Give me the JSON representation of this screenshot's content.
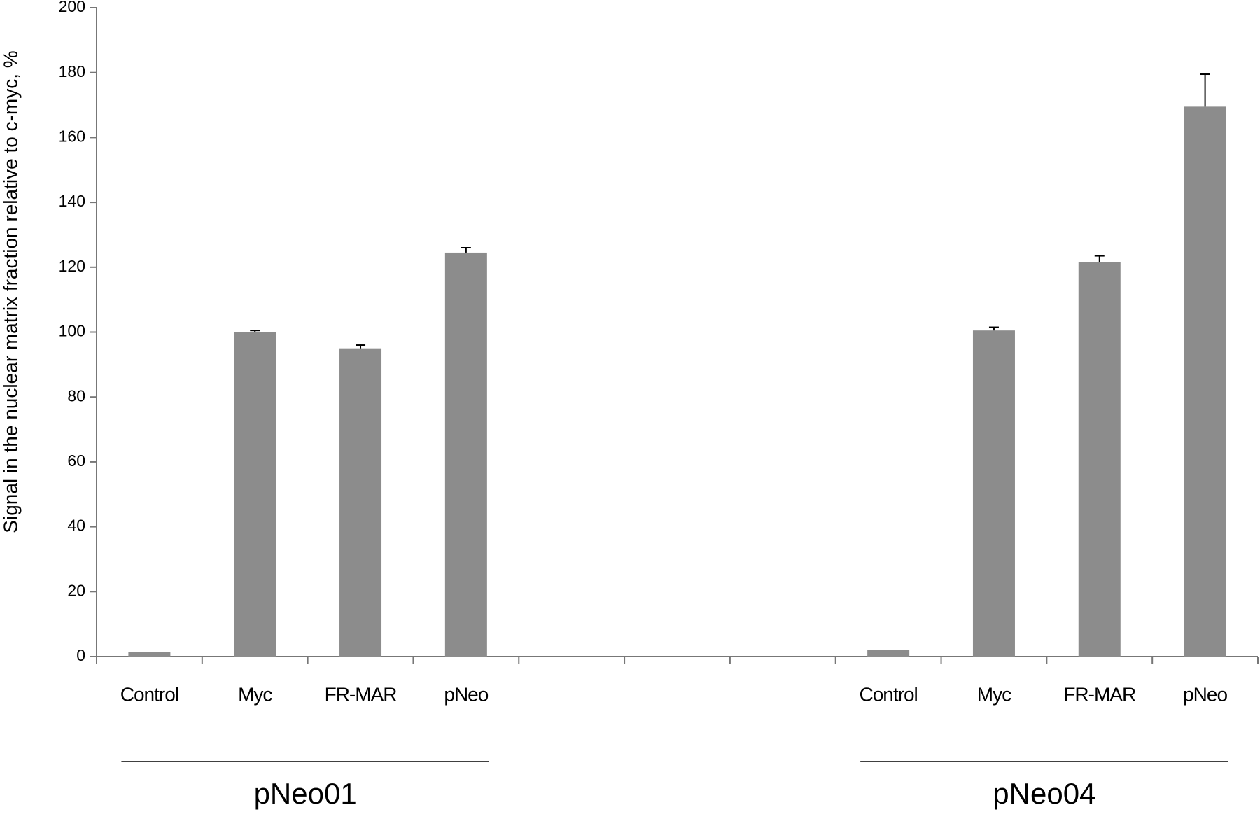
{
  "chart_data": {
    "type": "bar",
    "y_label": "Signal in the nuclear matrix fraction relative to c-myc, %",
    "categories": [
      "Control",
      "Myc",
      "FR-MAR",
      "pNeo",
      null,
      null,
      null,
      "Control",
      "Myc",
      "FR-MAR",
      "pNeo"
    ],
    "values": [
      1.5,
      100,
      95,
      124.5,
      null,
      null,
      null,
      2,
      100.5,
      121.5,
      169.5
    ],
    "errors": [
      0,
      0.5,
      1,
      1.5,
      null,
      null,
      null,
      0,
      1,
      2,
      10
    ],
    "groups": [
      "pNeo01",
      "pNeo04"
    ],
    "color": "#8c8c8c",
    "ylim": [
      0,
      200
    ],
    "yticks": [
      0,
      20,
      40,
      60,
      80,
      100,
      120,
      140,
      160,
      180,
      200
    ]
  }
}
